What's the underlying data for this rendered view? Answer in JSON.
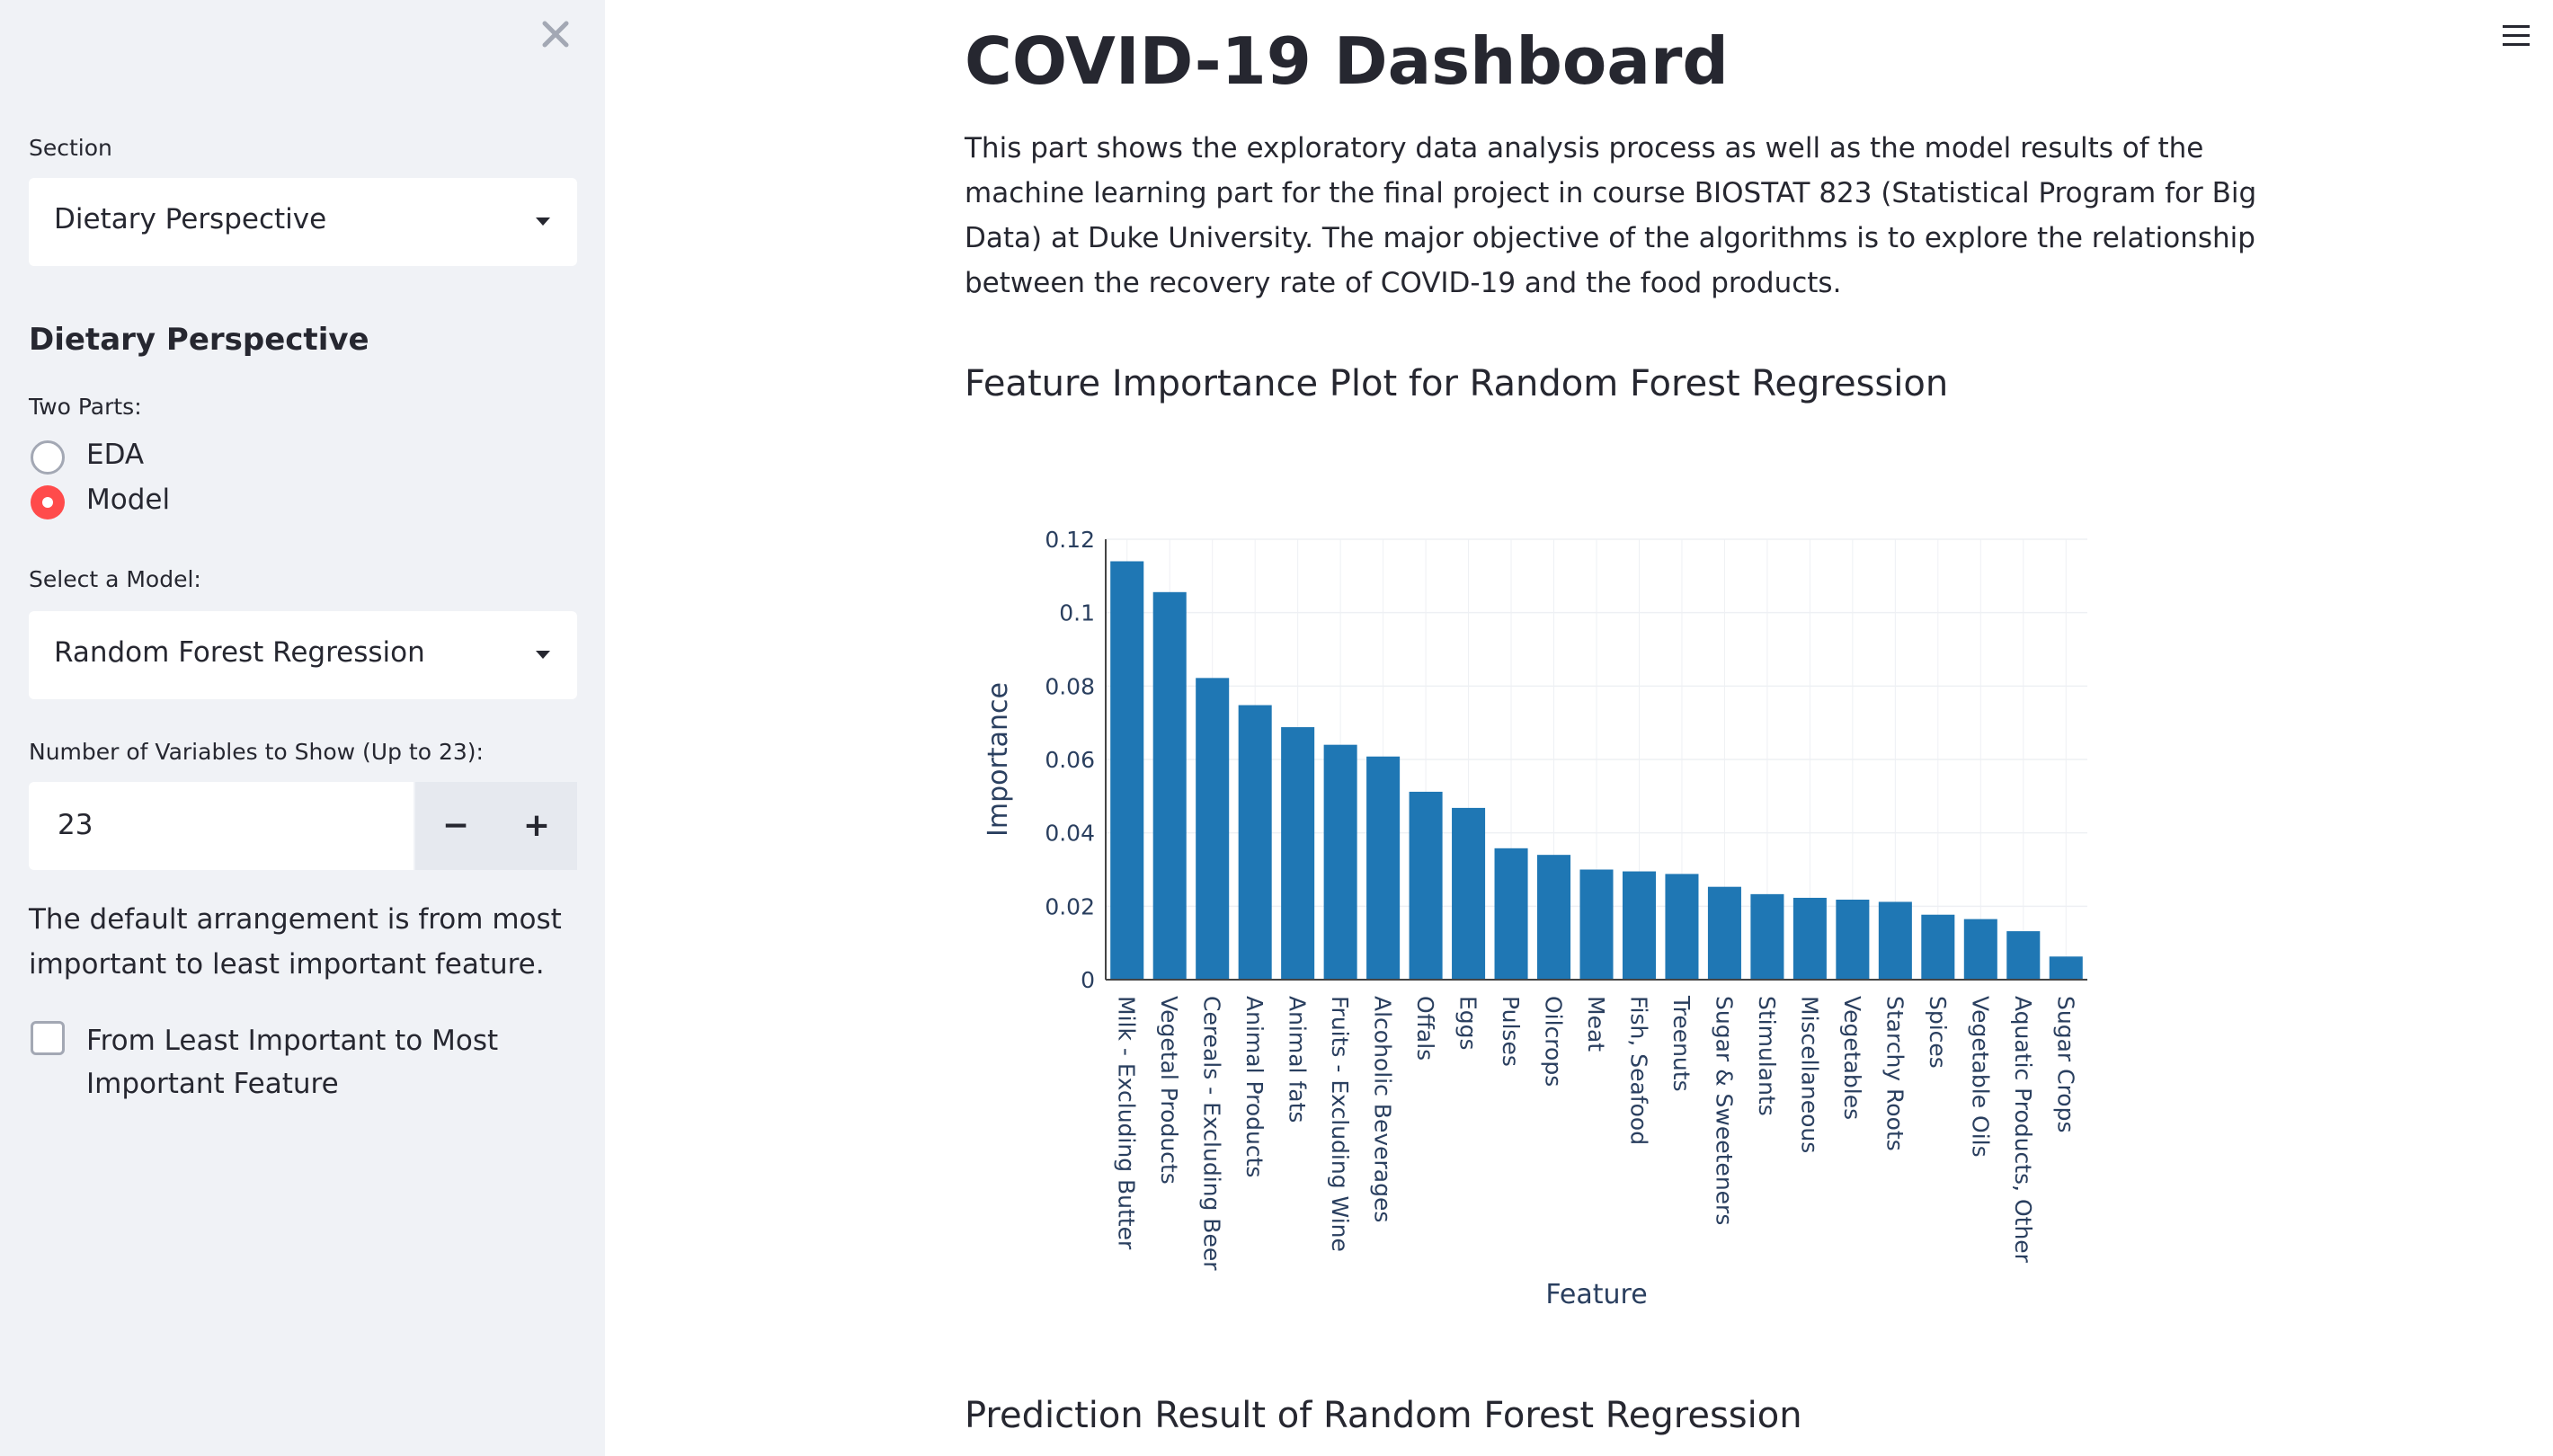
{
  "sidebar": {
    "close_icon": "close-icon",
    "section_label": "Section",
    "section_value": "Dietary Perspective",
    "heading": "Dietary Perspective",
    "parts_label": "Two Parts:",
    "radio_options": [
      "EDA",
      "Model"
    ],
    "radio_selected": "Model",
    "model_label": "Select a Model:",
    "model_value": "Random Forest Regression",
    "number_label": "Number of Variables to Show (Up to 23):",
    "number_value": "23",
    "minus_label": "−",
    "plus_label": "+",
    "description": "The default arrangement is from most important to least important feature.",
    "checkbox_label": "From Least Important to Most Important Feature",
    "checkbox_checked": false
  },
  "main": {
    "title": "COVID-19 Dashboard",
    "intro": "This part shows the exploratory data analysis process as well as the model results of the machine learning part for the final project in course BIOSTAT 823 (Statistical Program for Big Data) at Duke University. The major objective of the algorithms is to explore the relationship between the recovery rate of COVID-19 and the food products.",
    "chart_section_title": "Feature Importance Plot for Random Forest Regression",
    "prediction_section_title": "Prediction Result of Random Forest Regression",
    "menu_icon": "hamburger-menu-icon"
  },
  "colors": {
    "accent": "#ff4b4b",
    "bar": "#1f77b4",
    "sidebar_bg": "#f0f2f6",
    "text": "#262730"
  },
  "chart_data": {
    "type": "bar",
    "title": "",
    "xlabel": "Feature",
    "ylabel": "Importance",
    "ylim": [
      0,
      0.12
    ],
    "yticks": [
      0,
      0.02,
      0.04,
      0.06,
      0.08,
      0.1,
      0.12
    ],
    "ytick_labels": [
      "0",
      "0.02",
      "0.04",
      "0.06",
      "0.08",
      "0.1",
      "0.12"
    ],
    "grid": true,
    "categories": [
      "Milk - Excluding Butter",
      "Vegetal Products",
      "Cereals - Excluding Beer",
      "Animal Products",
      "Animal fats",
      "Fruits - Excluding Wine",
      "Alcoholic Beverages",
      "Offals",
      "Eggs",
      "Pulses",
      "Oilcrops",
      "Meat",
      "Fish, Seafood",
      "Treenuts",
      "Sugar & Sweeteners",
      "Stimulants",
      "Miscellaneous",
      "Vegetables",
      "Starchy Roots",
      "Spices",
      "Vegetable Oils",
      "Aquatic Products, Other",
      "Sugar Crops"
    ],
    "values": [
      0.114,
      0.1056,
      0.0822,
      0.0748,
      0.0688,
      0.064,
      0.0608,
      0.0512,
      0.0468,
      0.0358,
      0.034,
      0.03,
      0.0295,
      0.0288,
      0.0253,
      0.0233,
      0.0223,
      0.0218,
      0.0212,
      0.0177,
      0.0165,
      0.0132,
      0.0063
    ]
  }
}
